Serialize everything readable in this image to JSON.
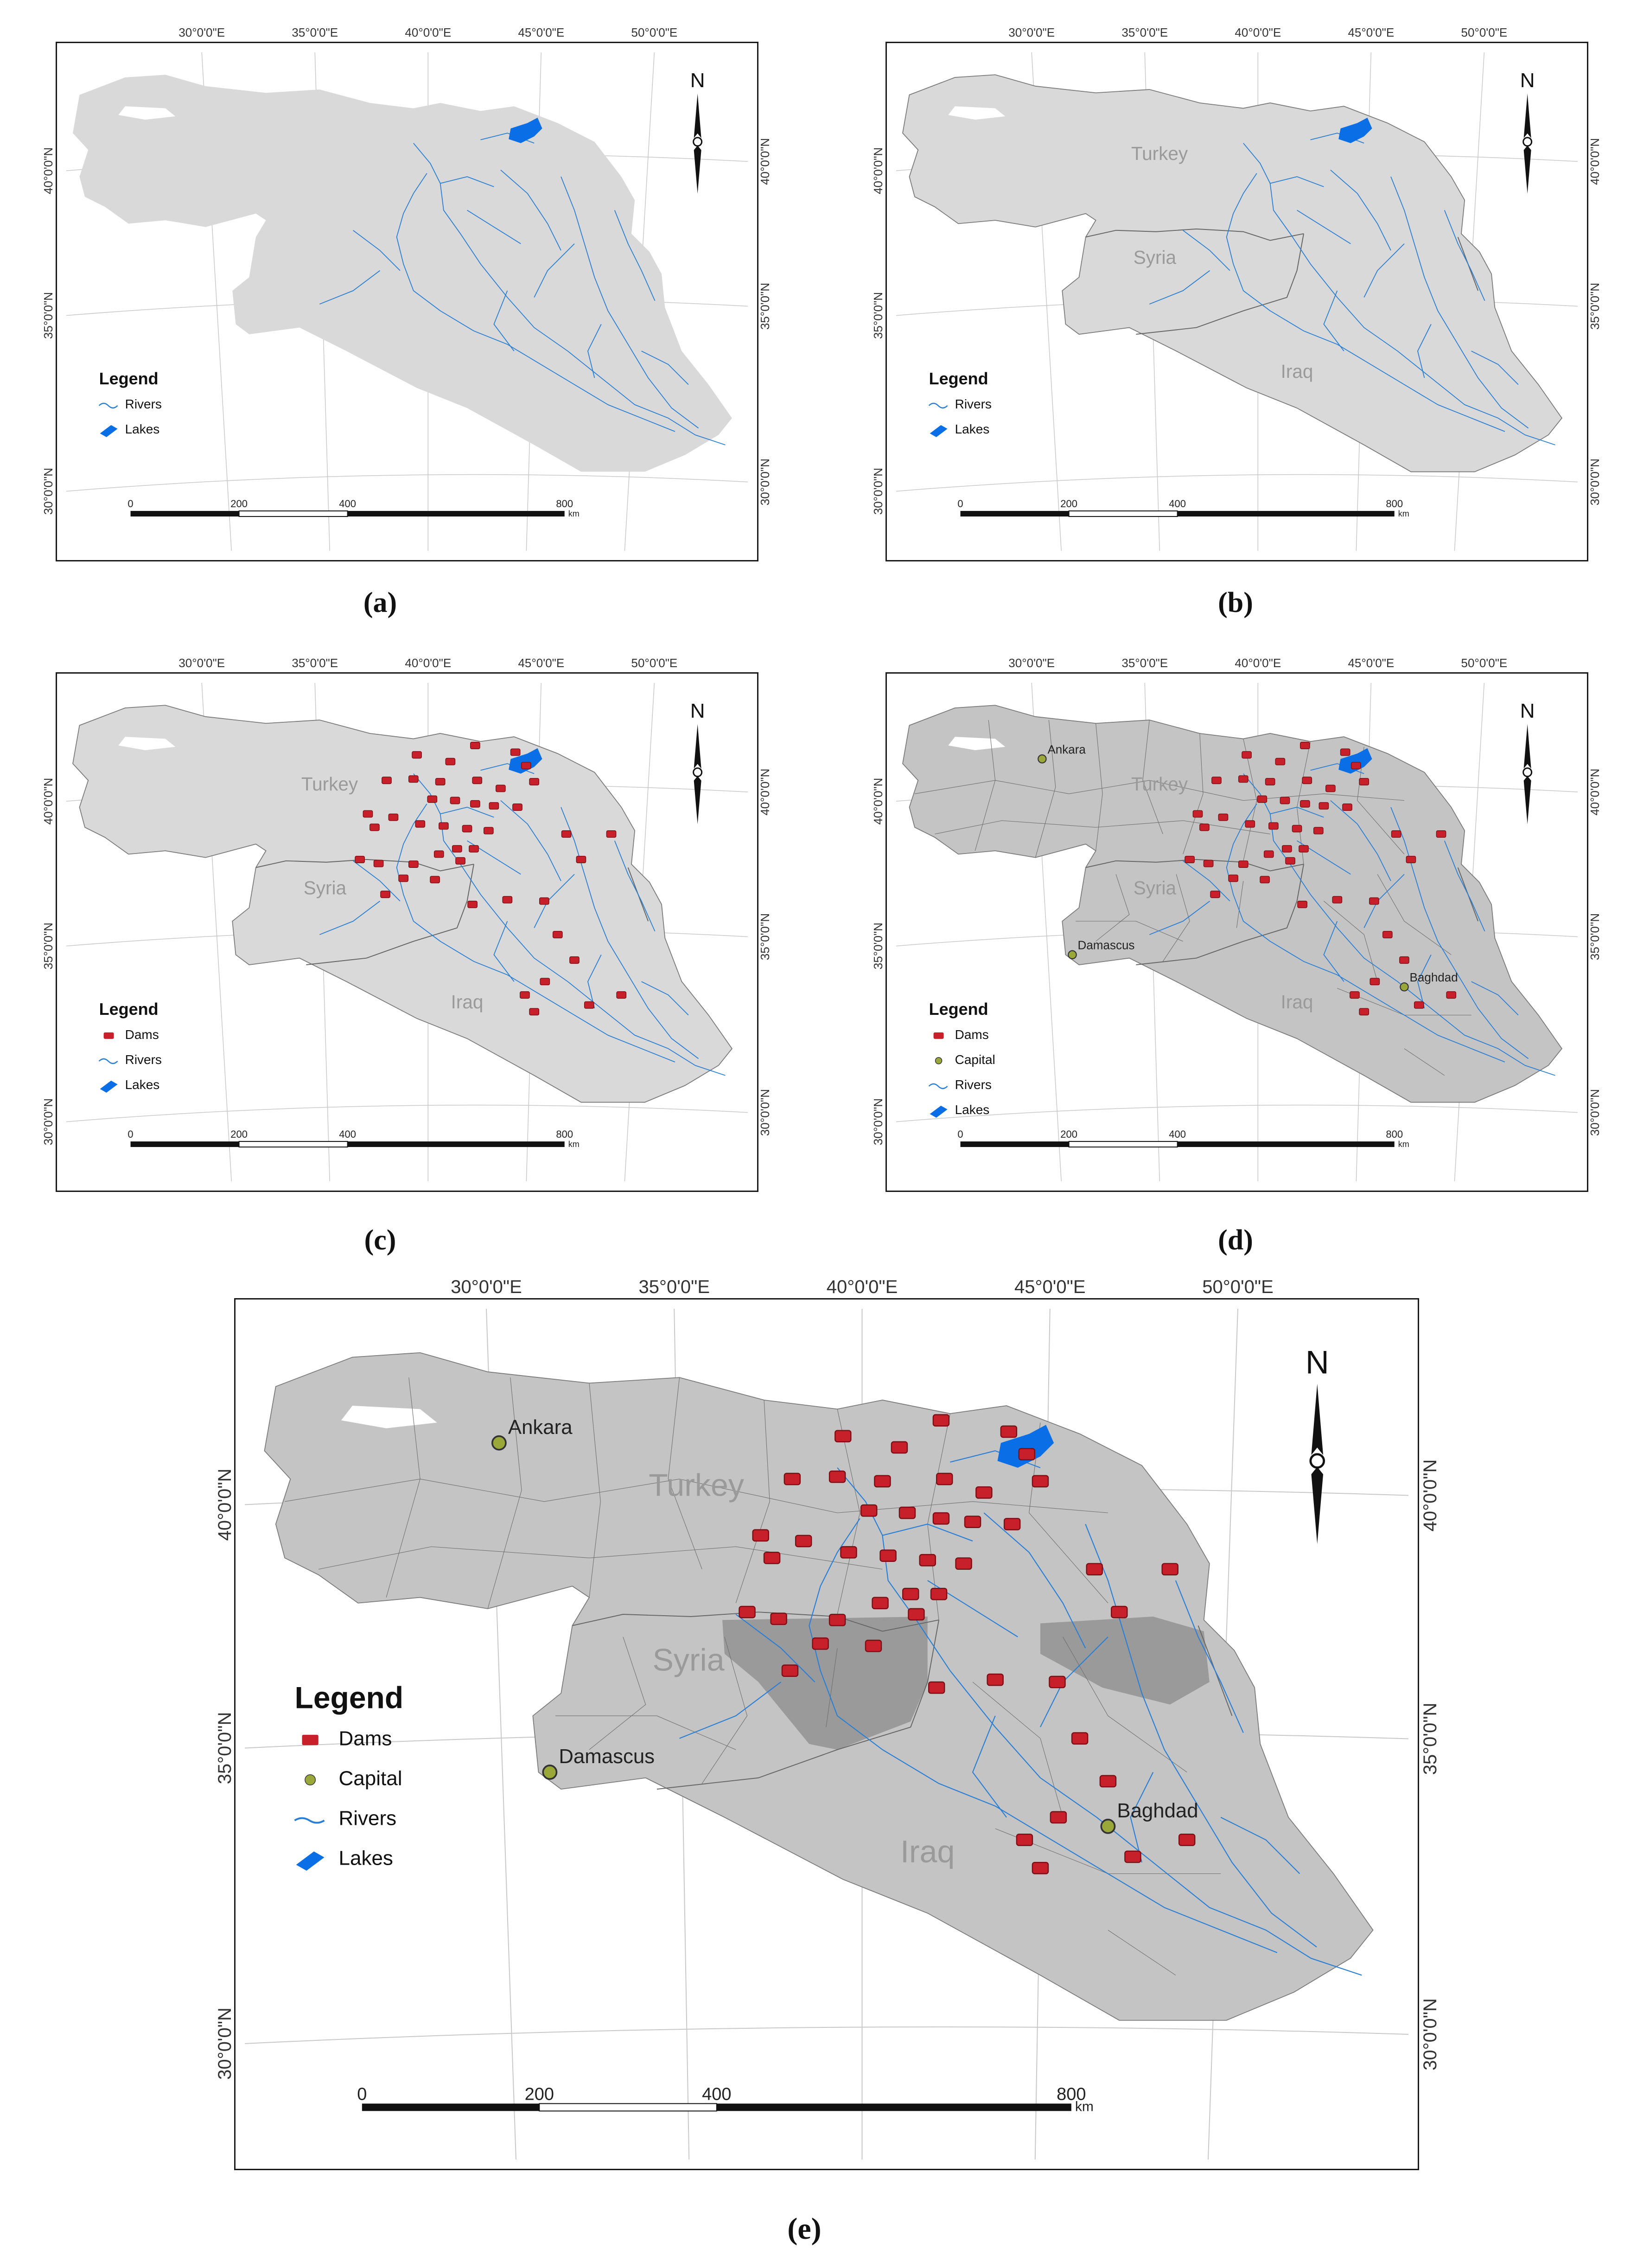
{
  "panels": [
    {
      "id": "a",
      "caption": "(a)",
      "layers": {
        "borders": false,
        "country_labels": false,
        "provinces": false,
        "dams": false,
        "capitals": false,
        "basin": false
      },
      "legend": {
        "title": "Legend",
        "items": [
          {
            "key": "rivers",
            "label": "Rivers"
          },
          {
            "key": "lakes",
            "label": "Lakes"
          }
        ]
      }
    },
    {
      "id": "b",
      "caption": "(b)",
      "layers": {
        "borders": true,
        "country_labels": true,
        "provinces": false,
        "dams": false,
        "capitals": false,
        "basin": false
      },
      "legend": {
        "title": "Legend",
        "items": [
          {
            "key": "rivers",
            "label": "Rivers"
          },
          {
            "key": "lakes",
            "label": "Lakes"
          }
        ]
      }
    },
    {
      "id": "c",
      "caption": "(c)",
      "layers": {
        "borders": true,
        "country_labels": true,
        "provinces": false,
        "dams": true,
        "capitals": false,
        "basin": false
      },
      "legend": {
        "title": "Legend",
        "items": [
          {
            "key": "dams",
            "label": "Dams"
          },
          {
            "key": "rivers",
            "label": "Rivers"
          },
          {
            "key": "lakes",
            "label": "Lakes"
          }
        ]
      }
    },
    {
      "id": "d",
      "caption": "(d)",
      "layers": {
        "borders": true,
        "country_labels": true,
        "provinces": true,
        "dams": true,
        "capitals": true,
        "basin": false
      },
      "legend": {
        "title": "Legend",
        "items": [
          {
            "key": "dams",
            "label": "Dams"
          },
          {
            "key": "capital",
            "label": "Capital"
          },
          {
            "key": "rivers",
            "label": "Rivers"
          },
          {
            "key": "lakes",
            "label": "Lakes"
          }
        ]
      }
    },
    {
      "id": "e",
      "caption": "(e)",
      "layers": {
        "borders": true,
        "country_labels": true,
        "provinces": true,
        "dams": true,
        "capitals": true,
        "basin": true
      },
      "legend": {
        "title": "Legend",
        "items": [
          {
            "key": "dams",
            "label": "Dams"
          },
          {
            "key": "capital",
            "label": "Capital"
          },
          {
            "key": "rivers",
            "label": "Rivers"
          },
          {
            "key": "lakes",
            "label": "Lakes"
          }
        ]
      }
    }
  ],
  "graticule": {
    "longitude_labels": [
      "30°0'0\"E",
      "35°0'0\"E",
      "40°0'0\"E",
      "45°0'0\"E",
      "50°0'0\"E"
    ],
    "latitude_labels": [
      "40°0'0\"N",
      "35°0'0\"N",
      "30°0'0\"N"
    ]
  },
  "north_arrow_label": "N",
  "scale_bar": {
    "ticks": [
      "0",
      "200",
      "400",
      "800"
    ],
    "unit": "km"
  },
  "countries": [
    "Turkey",
    "Syria",
    "Iraq"
  ],
  "capitals": [
    "Ankara",
    "Damascus",
    "Baghdad"
  ],
  "colors": {
    "land_light": "#d9d9d9",
    "land_dark": "#c4c4c4",
    "basin": "#9a9a9a",
    "river": "#2a7fd4",
    "lake": "#0a6ee6",
    "dam": "#c8202a",
    "capital": "#9aa83a",
    "border": "#7a7a7a",
    "province": "#6f6f6f"
  }
}
